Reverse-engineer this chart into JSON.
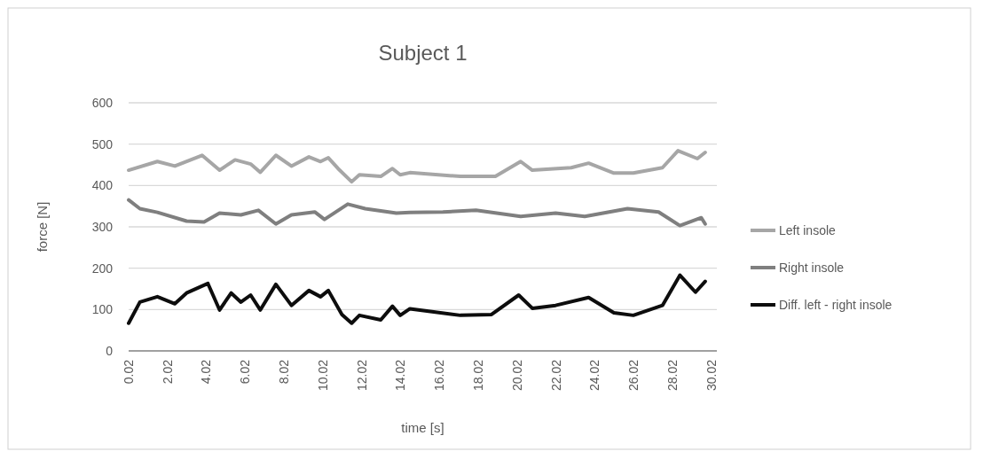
{
  "chart_data": {
    "type": "line",
    "title": "Subject 1",
    "xlabel": "time [s]",
    "ylabel": "force [N]",
    "xlim": [
      0.02,
      30.3
    ],
    "xticks": [
      {
        "value": 0.02,
        "label": "0.02"
      },
      {
        "value": 2.02,
        "label": "2.02"
      },
      {
        "value": 4.02,
        "label": "4.02"
      },
      {
        "value": 6.02,
        "label": "6.02"
      },
      {
        "value": 8.02,
        "label": "8.02"
      },
      {
        "value": 10.02,
        "label": "10.02"
      },
      {
        "value": 12.02,
        "label": "12.02"
      },
      {
        "value": 14.02,
        "label": "14.02"
      },
      {
        "value": 16.02,
        "label": "16.02"
      },
      {
        "value": 18.02,
        "label": "18.02"
      },
      {
        "value": 20.02,
        "label": "20.02"
      },
      {
        "value": 22.02,
        "label": "22.02"
      },
      {
        "value": 24.02,
        "label": "24.02"
      },
      {
        "value": 26.02,
        "label": "26.02"
      },
      {
        "value": 28.02,
        "label": "28.02"
      },
      {
        "value": 30.02,
        "label": "30.02"
      }
    ],
    "ylim": [
      0,
      600
    ],
    "yticks": [
      0,
      100,
      200,
      300,
      400,
      500,
      600
    ],
    "grid": "y",
    "legend": "right",
    "marker": "none",
    "line_style": "solid",
    "series": [
      {
        "name": "Left insole",
        "color": "#a6a6a6",
        "x": [
          0.02,
          1.5,
          2.4,
          3.8,
          4.7,
          5.5,
          6.3,
          6.8,
          7.6,
          8.4,
          9.3,
          9.9,
          10.3,
          10.8,
          11.5,
          11.9,
          13,
          13.6,
          14,
          14.5,
          17.1,
          18.9,
          20.2,
          20.8,
          22.8,
          23.7,
          25,
          26,
          27.5,
          28.3,
          29.3,
          29.7
        ],
        "values": [
          437,
          458,
          447,
          473,
          437,
          462,
          452,
          432,
          473,
          447,
          469,
          458,
          467,
          441,
          409,
          426,
          422,
          441,
          426,
          431,
          422,
          422,
          458,
          437,
          443,
          454,
          430,
          430,
          443,
          484,
          465,
          480
        ]
      },
      {
        "name": "Right insole",
        "color": "#7f7f7f",
        "x": [
          0.02,
          0.6,
          1.5,
          3,
          3.9,
          4.7,
          5.8,
          6.7,
          7.6,
          8.4,
          9.6,
          10.1,
          11.3,
          12.2,
          13.8,
          14.5,
          16.2,
          17.9,
          20.2,
          22,
          23.5,
          25.7,
          27.3,
          28.4,
          29.5,
          29.7
        ],
        "values": [
          365,
          344,
          335,
          314,
          312,
          333,
          329,
          340,
          307,
          329,
          336,
          318,
          355,
          344,
          333,
          335,
          336,
          340,
          325,
          333,
          325,
          344,
          336,
          303,
          322,
          307
        ]
      },
      {
        "name": "Diff. left - right insole",
        "color": "#0d0d0d",
        "x": [
          0.02,
          0.6,
          1.5,
          2.4,
          3,
          4.1,
          4.7,
          5.3,
          5.8,
          6.3,
          6.8,
          7.6,
          8.4,
          9.3,
          9.9,
          10.3,
          11,
          11.5,
          11.9,
          13,
          13.6,
          14,
          14.5,
          17.1,
          18.7,
          20.1,
          20.8,
          22,
          23.7,
          25,
          26,
          27.5,
          28.4,
          29.2,
          29.7
        ],
        "values": [
          67,
          118,
          131,
          114,
          140,
          163,
          99,
          140,
          118,
          135,
          99,
          161,
          110,
          146,
          131,
          146,
          88,
          67,
          86,
          75,
          108,
          86,
          102,
          86,
          88,
          135,
          103,
          110,
          129,
          92,
          86,
          110,
          183,
          142,
          168
        ]
      }
    ]
  }
}
